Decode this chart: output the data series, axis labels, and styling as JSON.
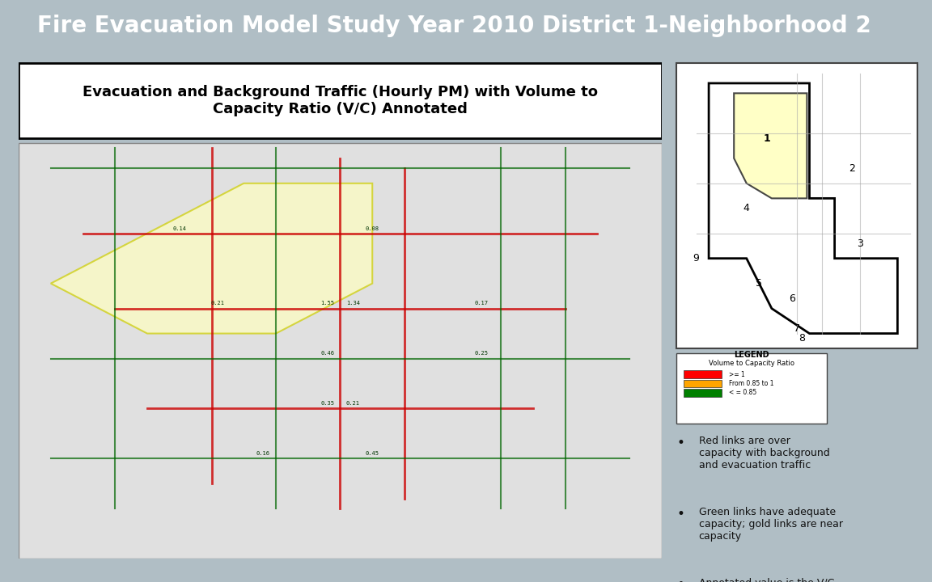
{
  "title": "Fire Evacuation Model Study Year 2010 District 1-Neighborhood 2",
  "title_color": "#ffffff",
  "title_bg_color": "#1a1a1a",
  "title_fontsize": 20,
  "subtitle": "Evacuation and Background Traffic (Hourly PM) with Volume to\nCapacity Ratio (V/C) Annotated",
  "subtitle_fontsize": 13,
  "subtitle_bg_color": "#ffffff",
  "subtitle_border_color": "#000000",
  "main_bg_color": "#b0bec5",
  "panel_bg_color": "#b0bec5",
  "bullet_points": [
    "Red links are over\ncapacity with background\nand evacuation traffic",
    "Green links have adequate\ncapacity; gold links are near\ncapacity",
    "Annotated value is the V/C\nratio for the combined\ndirectional link traffic volume"
  ],
  "bullet_fontsize": 12,
  "legend_title": "LEGEND",
  "legend_subtitle": "Volume to Capacity Ratio",
  "legend_items": [
    {
      "color": "#ff0000",
      "label": ">= 1"
    },
    {
      "color": "#ffa500",
      "label": "From 0.85 to 1"
    },
    {
      "color": "#008000",
      "label": "< = 0.85"
    }
  ],
  "map_placeholder_color": "#e0e0e0",
  "overview_map_bg": "#ffffff",
  "left_panel_bg": "#ffffff"
}
